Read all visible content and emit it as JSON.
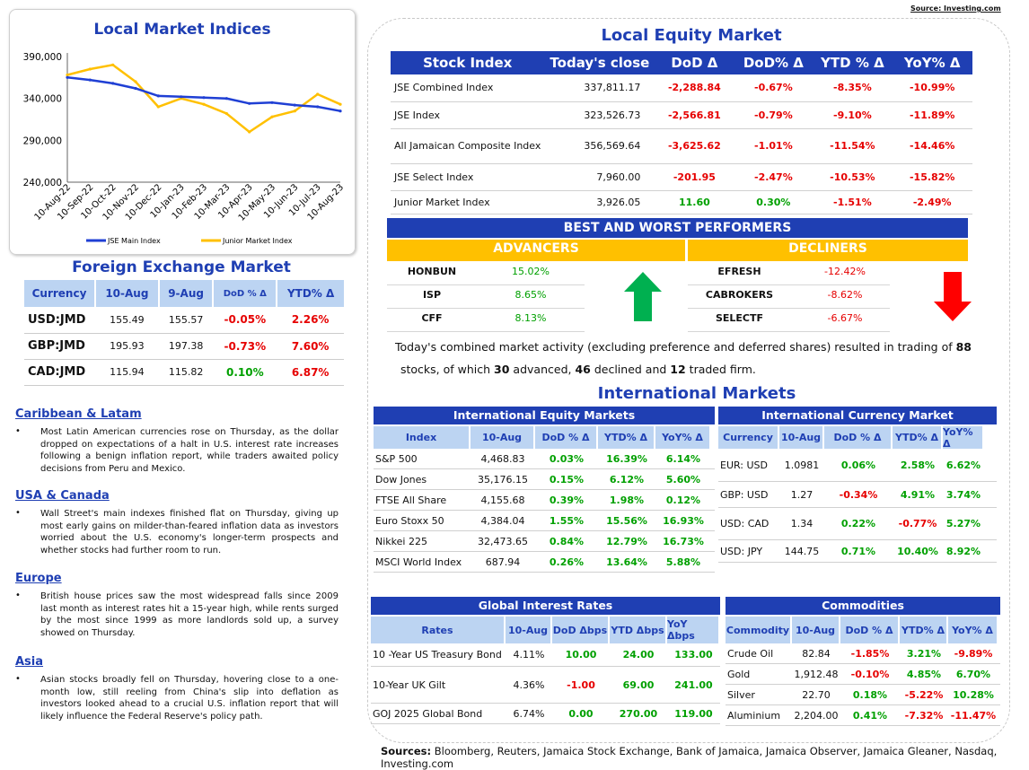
{
  "source_top": "Source: Investing.com",
  "chart_panel": {
    "title": "Local Market Indices",
    "legend": [
      "JSE Main Index",
      "Junior Market Index"
    ]
  },
  "chart_data": {
    "type": "line",
    "title": "Local Market Indices",
    "y_ticks": [
      "390,000",
      "340,000",
      "290,000",
      "240,000"
    ],
    "ylim": [
      240000,
      390000
    ],
    "x_ticks": [
      "10-Aug-22",
      "10-Sep-22",
      "10-Oct-22",
      "10-Nov-22",
      "10-Dec-22",
      "10-Jan-23",
      "10-Feb-23",
      "10-Mar-23",
      "10-Apr-23",
      "10-May-23",
      "10-Jun-23",
      "10-Jul-23",
      "10-Aug-23"
    ],
    "series": [
      {
        "name": "JSE Main Index",
        "color": "#1f3fd4",
        "values": [
          365000,
          362000,
          358000,
          352000,
          343000,
          342000,
          341000,
          340000,
          334000,
          335000,
          332000,
          330000,
          325000
        ]
      },
      {
        "name": "Junior Market Index",
        "color": "#ffc000",
        "values": [
          368000,
          375000,
          380000,
          360000,
          330000,
          340000,
          333000,
          322000,
          300000,
          318000,
          325000,
          345000,
          333000
        ]
      }
    ]
  },
  "fx": {
    "title": "Foreign Exchange Market",
    "headers": [
      "Currency",
      "10-Aug",
      "9-Aug",
      "DoD % Δ",
      "YTD% Δ"
    ],
    "rows": [
      {
        "cur": "USD:JMD",
        "a": "155.49",
        "b": "155.57",
        "dod": "-0.05%",
        "ytd": "2.26%"
      },
      {
        "cur": "GBP:JMD",
        "a": "195.93",
        "b": "197.38",
        "dod": "-0.73%",
        "ytd": "7.60%"
      },
      {
        "cur": "CAD:JMD",
        "a": "115.94",
        "b": "115.82",
        "dod": "0.10%",
        "ytd": "6.87%"
      }
    ]
  },
  "news": [
    {
      "title": "Caribbean & Latam",
      "text": "Most Latin American currencies rose on Thursday, as the dollar dropped on expectations of a halt in U.S. interest rate increases following a benign inflation report, while traders awaited policy decisions from Peru and Mexico."
    },
    {
      "title": "USA & Canada",
      "text": "Wall Street's main indexes finished flat on Thursday, giving up most early gains on milder-than-feared inflation data as investors worried about the U.S. economy's longer-term prospects and whether stocks had further room to run."
    },
    {
      "title": "Europe",
      "text": "British house prices saw the most widespread falls since 2009 last month as interest rates hit a 15-year high, while rents surged by the most since 1999 as more landlords sold up, a survey showed on Thursday."
    },
    {
      "title": "Asia",
      "text": "Asian stocks broadly fell on Thursday, hovering close to a one-month low, still reeling from China's slip into deflation as investors looked ahead to a crucial U.S. inflation report that will likely influence the Federal Reserve's policy path."
    }
  ],
  "local_equity": {
    "title": "Local Equity Market",
    "headers": [
      "Stock Index",
      "Today's close",
      "DoD  Δ",
      "DoD% Δ",
      "YTD % Δ",
      "YoY% Δ"
    ],
    "rows": [
      {
        "name": "JSE Combined Index",
        "close": "337,811.17",
        "dod": "-2,288.84",
        "dodp": "-0.67%",
        "ytd": "-8.35%",
        "yoy": "-10.99%"
      },
      {
        "name": "JSE Index",
        "close": "323,526.73",
        "dod": "-2,566.81",
        "dodp": "-0.79%",
        "ytd": "-9.10%",
        "yoy": "-11.89%"
      },
      {
        "name": "All Jamaican Composite Index",
        "close": "356,569.64",
        "dod": "-3,625.62",
        "dodp": "-1.01%",
        "ytd": "-11.54%",
        "yoy": "-14.46%"
      },
      {
        "name": "JSE Select Index",
        "close": "7,960.00",
        "dod": "-201.95",
        "dodp": "-2.47%",
        "ytd": "-10.53%",
        "yoy": "-15.82%"
      },
      {
        "name": "Junior Market Index",
        "close": "3,926.05",
        "dod": "11.60",
        "dodp": "0.30%",
        "ytd": "-1.51%",
        "yoy": "-2.49%"
      }
    ]
  },
  "performers": {
    "title": "BEST AND WORST PERFORMERS",
    "adv_label": "ADVANCERS",
    "dec_label": "DECLINERS",
    "advancers": [
      {
        "sym": "HONBUN",
        "pct": "15.02%"
      },
      {
        "sym": "ISP",
        "pct": "8.65%"
      },
      {
        "sym": "CFF",
        "pct": "8.13%"
      }
    ],
    "decliners": [
      {
        "sym": "EFRESH",
        "pct": "-12.42%"
      },
      {
        "sym": "CABROKERS",
        "pct": "-8.62%"
      },
      {
        "sym": "SELECTF",
        "pct": "-6.67%"
      }
    ]
  },
  "summary": {
    "pre": "Today's combined market activity (excluding preference and deferred shares) resulted in trading of ",
    "total": "88",
    "mid1": " stocks, of which ",
    "adv": "30",
    "mid2": " advanced, ",
    "dec": "46",
    "mid3": " declined and ",
    "firm": "12",
    "post": " traded firm."
  },
  "intl_title": "International Markets",
  "intl_equity": {
    "title": "International Equity Markets",
    "headers": [
      "Index",
      "10-Aug",
      "DoD % Δ",
      "YTD% Δ",
      "YoY% Δ"
    ],
    "rows": [
      {
        "name": "S&P 500",
        "v": "4,468.83",
        "dod": "0.03%",
        "ytd": "16.39%",
        "yoy": "6.14%"
      },
      {
        "name": "Dow Jones",
        "v": "35,176.15",
        "dod": "0.15%",
        "ytd": "6.12%",
        "yoy": "5.60%"
      },
      {
        "name": "FTSE All Share",
        "v": "4,155.68",
        "dod": "0.39%",
        "ytd": "1.98%",
        "yoy": "0.12%"
      },
      {
        "name": "Euro Stoxx 50",
        "v": "4,384.04",
        "dod": "1.55%",
        "ytd": "15.56%",
        "yoy": "16.93%"
      },
      {
        "name": "Nikkei 225",
        "v": "32,473.65",
        "dod": "0.84%",
        "ytd": "12.79%",
        "yoy": "16.73%"
      },
      {
        "name": "MSCI World Index",
        "v": "687.94",
        "dod": "0.26%",
        "ytd": "13.64%",
        "yoy": "5.88%"
      }
    ]
  },
  "intl_fx": {
    "title": "International Currency Market",
    "headers": [
      "Currency",
      "10-Aug",
      "DoD % Δ",
      "YTD% Δ",
      "YoY% Δ"
    ],
    "rows": [
      {
        "name": "EUR: USD",
        "v": "1.0981",
        "dod": "0.06%",
        "ytd": "2.58%",
        "yoy": "6.62%"
      },
      {
        "name": "GBP: USD",
        "v": "1.27",
        "dod": "-0.34%",
        "ytd": "4.91%",
        "yoy": "3.74%"
      },
      {
        "name": "USD: CAD",
        "v": "1.34",
        "dod": "0.22%",
        "ytd": "-0.77%",
        "yoy": "5.27%"
      },
      {
        "name": "USD: JPY",
        "v": "144.75",
        "dod": "0.71%",
        "ytd": "10.40%",
        "yoy": "8.92%"
      }
    ]
  },
  "rates": {
    "title": "Global Interest Rates",
    "headers": [
      "Rates",
      "10-Aug",
      "DoD Δbps",
      "YTD Δbps",
      "YoY Δbps"
    ],
    "rows": [
      {
        "name": "10 -Year US Treasury Bond",
        "v": "4.11%",
        "dod": "10.00",
        "ytd": "24.00",
        "yoy": "133.00"
      },
      {
        "name": "10-Year UK Gilt",
        "v": "4.36%",
        "dod": "-1.00",
        "ytd": "69.00",
        "yoy": "241.00"
      },
      {
        "name": "GOJ 2025 Global Bond",
        "v": "6.74%",
        "dod": "0.00",
        "ytd": "270.00",
        "yoy": "119.00"
      }
    ]
  },
  "commod": {
    "title": "Commodities",
    "headers": [
      "Commodity",
      "10-Aug",
      "DoD % Δ",
      "YTD% Δ",
      "YoY% Δ"
    ],
    "rows": [
      {
        "name": "Crude Oil",
        "v": "82.84",
        "dod": "-1.85%",
        "ytd": "3.21%",
        "yoy": "-9.89%"
      },
      {
        "name": "Gold",
        "v": "1,912.48",
        "dod": "-0.10%",
        "ytd": "4.85%",
        "yoy": "6.70%"
      },
      {
        "name": "Silver",
        "v": "22.70",
        "dod": "0.18%",
        "ytd": "-5.22%",
        "yoy": "10.28%"
      },
      {
        "name": "Aluminium",
        "v": "2,204.00",
        "dod": "0.41%",
        "ytd": "-7.32%",
        "yoy": "-11.47%"
      }
    ]
  },
  "sources": {
    "label": "Sources:",
    "text": " Bloomberg, Reuters, Jamaica Stock Exchange, Bank of Jamaica, Jamaica Observer, Jamaica Gleaner, Nasdaq, Investing.com"
  }
}
